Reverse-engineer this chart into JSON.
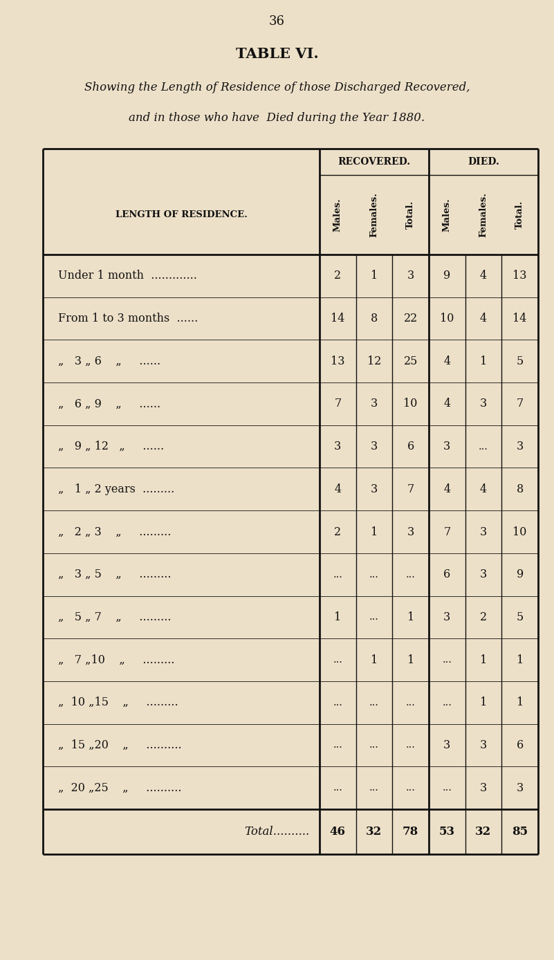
{
  "page_number": "36",
  "title": "TABLE VI.",
  "subtitle_line1": "Showing the Length of Residence of those Discharged Recovered,",
  "subtitle_line2": "and in those who have  Died during the Year 1880.",
  "col_header_label": "LENGTH OF RESIDENCE.",
  "group1_label": "RECOVERED.",
  "group2_label": "DIED.",
  "rows": [
    {
      "label": "Under 1 month  .............",
      "vals": [
        "2",
        "1",
        "3",
        "9",
        "4",
        "13"
      ],
      "indent": 0
    },
    {
      "label": "From 1 to 3 months  ......",
      "vals": [
        "14",
        "8",
        "22",
        "10",
        "4",
        "14"
      ],
      "indent": 0
    },
    {
      "label": "„   3 „ 6    „     ......",
      "vals": [
        "13",
        "12",
        "25",
        "4",
        "1",
        "5"
      ],
      "indent": 1
    },
    {
      "label": "„   6 „ 9    „     ......",
      "vals": [
        "7",
        "3",
        "10",
        "4",
        "3",
        "7"
      ],
      "indent": 1
    },
    {
      "label": "„   9 „ 12   „     ......",
      "vals": [
        "3",
        "3",
        "6",
        "3",
        "...",
        "3"
      ],
      "indent": 1
    },
    {
      "label": "„   1 „ 2 years  .........",
      "vals": [
        "4",
        "3",
        "7",
        "4",
        "4",
        "8"
      ],
      "indent": 1
    },
    {
      "label": "„   2 „ 3    „     .........",
      "vals": [
        "2",
        "1",
        "3",
        "7",
        "3",
        "10"
      ],
      "indent": 1
    },
    {
      "label": "„   3 „ 5    „     .........",
      "vals": [
        "...",
        "...",
        "...",
        "6",
        "3",
        "9"
      ],
      "indent": 1
    },
    {
      "label": "„   5 „ 7    „     .........",
      "vals": [
        "1",
        "...",
        "1",
        "3",
        "2",
        "5"
      ],
      "indent": 1
    },
    {
      "label": "„   7 „10    „     .........",
      "vals": [
        "...",
        "1",
        "1",
        "...",
        "1",
        "1"
      ],
      "indent": 1
    },
    {
      "label": "„  10 „15    „     .........",
      "vals": [
        "...",
        "...",
        "...",
        "...",
        "1",
        "1"
      ],
      "indent": 1
    },
    {
      "label": "„  15 „20    „     ..........",
      "vals": [
        "...",
        "...",
        "...",
        "3",
        "3",
        "6"
      ],
      "indent": 1
    },
    {
      "label": "„  20 „25    „     ..........",
      "vals": [
        "...",
        "...",
        "...",
        "...",
        "3",
        "3"
      ],
      "indent": 1
    }
  ],
  "total_row": {
    "label": "Total..........",
    "vals": [
      "46",
      "32",
      "78",
      "53",
      "32",
      "85"
    ]
  },
  "bg_color": "#ede0c8",
  "text_color": "#111111",
  "line_color": "#111111"
}
